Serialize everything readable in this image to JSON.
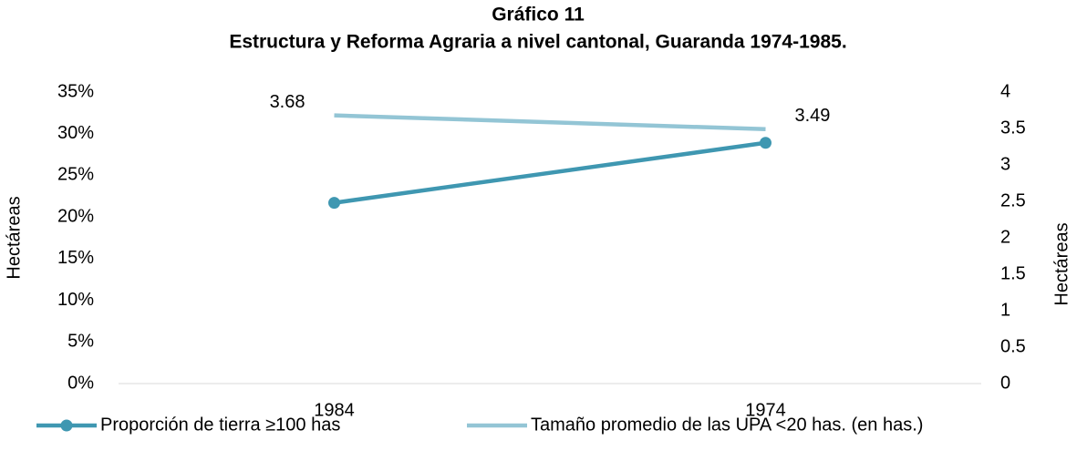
{
  "chart_data": {
    "type": "line",
    "title": [
      "Gráfico 11",
      "Estructura y Reforma Agraria a nivel cantonal, Guaranda 1974-1985."
    ],
    "categories": [
      "1984",
      "1974"
    ],
    "ylabel": "Hectáreas",
    "y2label": "Hectáreas",
    "ylim": [
      0,
      35
    ],
    "yticks": [
      {
        "value": 0,
        "label": "0%"
      },
      {
        "value": 5,
        "label": "5%"
      },
      {
        "value": 10,
        "label": "10%"
      },
      {
        "value": 15,
        "label": "15%"
      },
      {
        "value": 20,
        "label": "20%"
      },
      {
        "value": 25,
        "label": "25%"
      },
      {
        "value": 30,
        "label": "30%"
      },
      {
        "value": 35,
        "label": "35%"
      }
    ],
    "y2lim": [
      0,
      4
    ],
    "y2ticks": [
      0,
      0.5,
      1,
      1.5,
      2,
      2.5,
      3,
      3.5,
      4
    ],
    "grid": false,
    "legend": "bottom",
    "series": [
      {
        "name": "Proporción de tierra ≥100 has",
        "color": "#3f97b1",
        "values": [
          21.7,
          28.9
        ],
        "markers": true
      },
      {
        "name": "Tamaño promedio de las UPA <20 has. (en has.)",
        "color": "#93c5d5",
        "values": [
          3.68,
          3.49
        ],
        "axis": "y2",
        "data_labels": true
      }
    ]
  }
}
